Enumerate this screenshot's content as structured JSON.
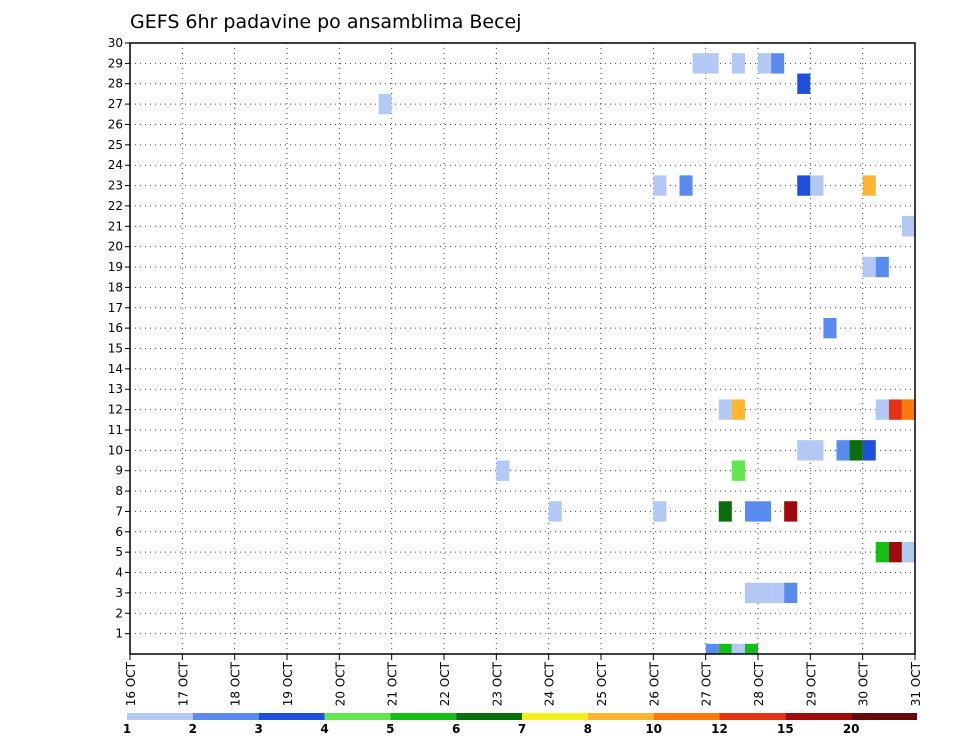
{
  "chart_data": {
    "type": "heatmap",
    "title": "GEFS 6hr padavine po ansamblima Becej",
    "y_members": [
      1,
      2,
      3,
      4,
      5,
      6,
      7,
      8,
      9,
      10,
      11,
      12,
      13,
      14,
      15,
      16,
      17,
      18,
      19,
      20,
      21,
      22,
      23,
      24,
      25,
      26,
      27,
      28,
      29,
      30
    ],
    "ylim": [
      0,
      30
    ],
    "x_start_day": 16,
    "x_end_day": 31,
    "x_tick_labels": [
      "16 OCT",
      "17 OCT",
      "18 OCT",
      "19 OCT",
      "20 OCT",
      "21 OCT",
      "22 OCT",
      "23 OCT",
      "24 OCT",
      "25 OCT",
      "26 OCT",
      "27 OCT",
      "28 OCT",
      "29 OCT",
      "30 OCT",
      "31 OCT"
    ],
    "grid": true,
    "colorbar": {
      "colors": [
        "#b4c8f5",
        "#5a8cf0",
        "#1e50dc",
        "#64e650",
        "#14be14",
        "#0a6e0a",
        "#f0f01e",
        "#ffb432",
        "#ff780a",
        "#e63214",
        "#a00a0a",
        "#640a0a"
      ],
      "labels": [
        "1",
        "2",
        "3",
        "4",
        "5",
        "6",
        "7",
        "8",
        "10",
        "12",
        "15",
        "20"
      ]
    },
    "cells": [
      {
        "m": 29,
        "d": 26.75,
        "v": 1
      },
      {
        "m": 29,
        "d": 27.0,
        "v": 1
      },
      {
        "m": 29,
        "d": 27.5,
        "v": 1
      },
      {
        "m": 29,
        "d": 28.0,
        "v": 1
      },
      {
        "m": 29,
        "d": 28.25,
        "v": 2
      },
      {
        "m": 28,
        "d": 28.75,
        "v": 3
      },
      {
        "m": 27,
        "d": 20.75,
        "v": 1
      },
      {
        "m": 23,
        "d": 26.0,
        "v": 1
      },
      {
        "m": 23,
        "d": 26.5,
        "v": 2
      },
      {
        "m": 23,
        "d": 28.75,
        "v": 3
      },
      {
        "m": 23,
        "d": 29.0,
        "v": 1
      },
      {
        "m": 23,
        "d": 30.0,
        "v": 8
      },
      {
        "m": 21,
        "d": 30.75,
        "v": 1
      },
      {
        "m": 19,
        "d": 30.0,
        "v": 1
      },
      {
        "m": 19,
        "d": 30.25,
        "v": 2
      },
      {
        "m": 16,
        "d": 29.25,
        "v": 2
      },
      {
        "m": 12,
        "d": 27.25,
        "v": 1
      },
      {
        "m": 12,
        "d": 27.5,
        "v": 8
      },
      {
        "m": 12,
        "d": 30.25,
        "v": 1
      },
      {
        "m": 12,
        "d": 30.5,
        "v": 12
      },
      {
        "m": 12,
        "d": 30.75,
        "v": 10
      },
      {
        "m": 10,
        "d": 28.75,
        "v": 1
      },
      {
        "m": 10,
        "d": 29.0,
        "v": 1
      },
      {
        "m": 10,
        "d": 29.5,
        "v": 2
      },
      {
        "m": 10,
        "d": 29.75,
        "v": 6
      },
      {
        "m": 10,
        "d": 30.0,
        "v": 3
      },
      {
        "m": 9,
        "d": 27.5,
        "v": 4
      },
      {
        "m": 9,
        "d": 23.0,
        "v": 1
      },
      {
        "m": 7,
        "d": 24.0,
        "v": 1
      },
      {
        "m": 7,
        "d": 26.0,
        "v": 1
      },
      {
        "m": 7,
        "d": 27.25,
        "v": 6
      },
      {
        "m": 7,
        "d": 27.75,
        "v": 2
      },
      {
        "m": 7,
        "d": 28.0,
        "v": 2
      },
      {
        "m": 7,
        "d": 28.5,
        "v": 15
      },
      {
        "m": 5,
        "d": 30.25,
        "v": 5
      },
      {
        "m": 5,
        "d": 30.5,
        "v": 15
      },
      {
        "m": 5,
        "d": 30.75,
        "v": 1
      },
      {
        "m": 3,
        "d": 27.75,
        "v": 1
      },
      {
        "m": 3,
        "d": 28.0,
        "v": 1
      },
      {
        "m": 3,
        "d": 28.25,
        "v": 1
      },
      {
        "m": 3,
        "d": 28.5,
        "v": 2
      },
      {
        "m": 0,
        "d": 27.0,
        "v": 2
      },
      {
        "m": 0,
        "d": 27.25,
        "v": 5
      },
      {
        "m": 0,
        "d": 27.5,
        "v": 1
      },
      {
        "m": 0,
        "d": 27.75,
        "v": 5
      }
    ]
  }
}
